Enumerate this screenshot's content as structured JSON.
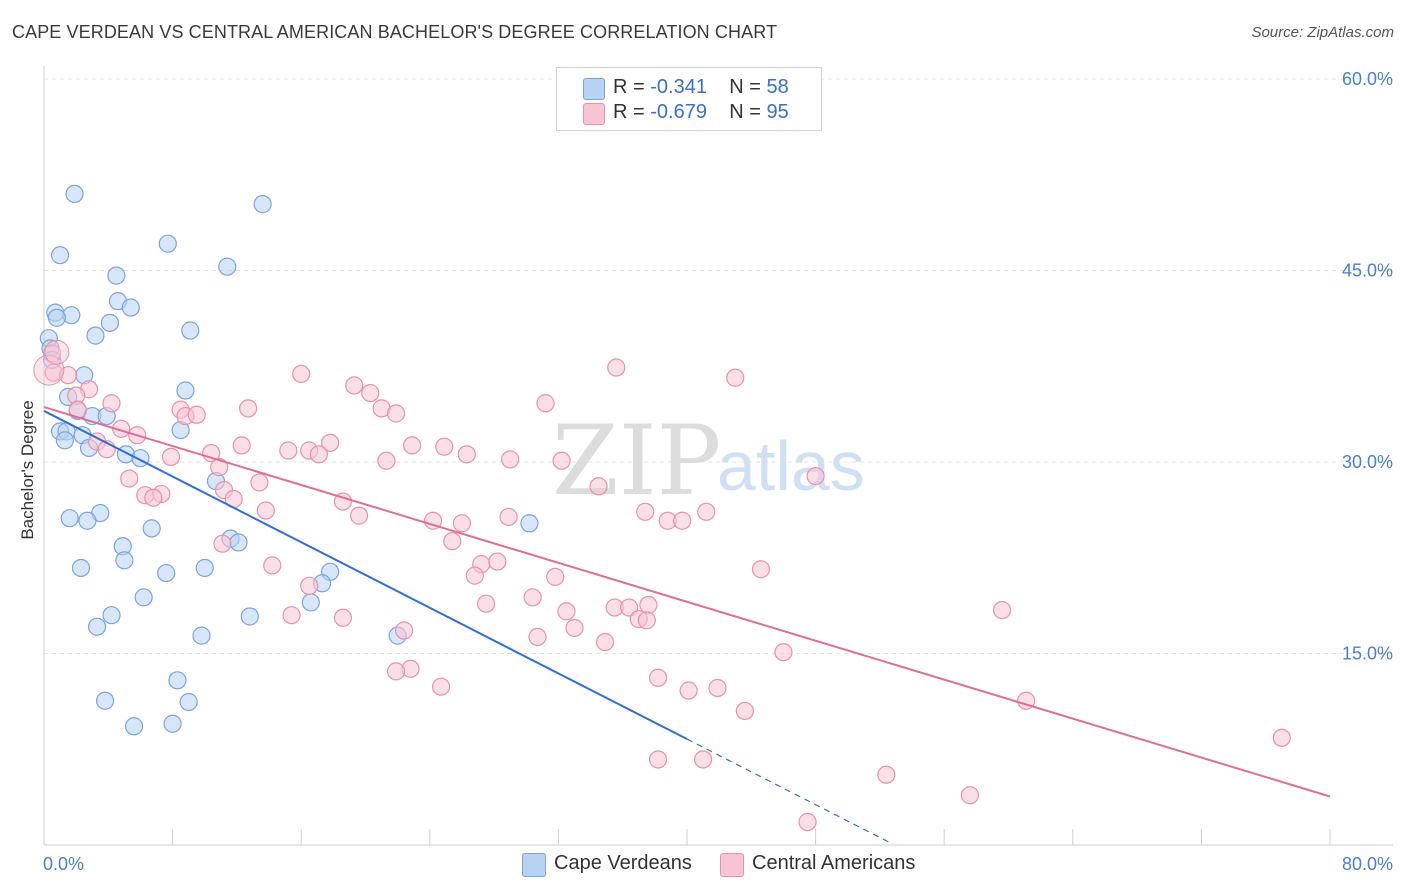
{
  "header": {
    "title": "CAPE VERDEAN VS CENTRAL AMERICAN BACHELOR'S DEGREE CORRELATION CHART",
    "source": "Source: ZipAtlas.com"
  },
  "watermark": {
    "zip": "ZIP",
    "atlas": "atlas"
  },
  "legend_top": {
    "rows": [
      {
        "r_label": "R = ",
        "r_value": "-0.341",
        "n_label": "N = ",
        "n_value": "58"
      },
      {
        "r_label": "R = ",
        "r_value": "-0.679",
        "n_label": "N = ",
        "n_value": "95"
      }
    ]
  },
  "legend_bottom": {
    "items": [
      "Cape Verdeans",
      "Central Americans"
    ]
  },
  "colors": {
    "blue_fill": "#b8d2f4",
    "blue_stroke": "#7aa4e0",
    "blue_line": "#2f6fd6",
    "pink_fill": "#f8c4d3",
    "pink_stroke": "#e891ad",
    "pink_line": "#e06d96",
    "grid": "#e3e3e3",
    "tick_text": "#4a7fd1"
  },
  "chart_data": {
    "type": "scatter",
    "title": "CAPE VERDEAN VS CENTRAL AMERICAN BACHELOR'S DEGREE CORRELATION CHART",
    "xlabel": "",
    "ylabel": "Bachelor's Degree",
    "xlim": [
      0,
      80
    ],
    "ylim": [
      0,
      60
    ],
    "x_tick_labels": [
      {
        "value": 0,
        "label": "0.0%"
      },
      {
        "value": 80,
        "label": "80.0%"
      }
    ],
    "y_tick_labels": [
      {
        "value": 15,
        "label": "15.0%"
      },
      {
        "value": 30,
        "label": "30.0%"
      },
      {
        "value": 45,
        "label": "45.0%"
      },
      {
        "value": 60,
        "label": "60.0%"
      }
    ],
    "series": [
      {
        "name": "Cape Verdeans",
        "R": -0.341,
        "N": 58,
        "trend": {
          "x0": 0,
          "y0": 34.0,
          "x1": 40,
          "y1": 8.3,
          "dash_to_x": 52.6
        },
        "points": [
          [
            1.9,
            51.0
          ],
          [
            13.6,
            50.2
          ],
          [
            7.7,
            47.1
          ],
          [
            1.0,
            46.2
          ],
          [
            11.4,
            45.3
          ],
          [
            4.5,
            44.6
          ],
          [
            4.6,
            42.6
          ],
          [
            5.4,
            42.1
          ],
          [
            0.7,
            41.7
          ],
          [
            1.7,
            41.5
          ],
          [
            0.8,
            41.3
          ],
          [
            4.1,
            40.9
          ],
          [
            9.1,
            40.3
          ],
          [
            3.2,
            39.9
          ],
          [
            0.3,
            39.7
          ],
          [
            0.4,
            38.9
          ],
          [
            0.5,
            38.0
          ],
          [
            2.5,
            36.8
          ],
          [
            8.8,
            35.6
          ],
          [
            1.5,
            35.1
          ],
          [
            2.1,
            34.0
          ],
          [
            3.0,
            33.6
          ],
          [
            3.9,
            33.6
          ],
          [
            1.0,
            32.4
          ],
          [
            1.4,
            32.4
          ],
          [
            2.4,
            32.1
          ],
          [
            8.5,
            32.5
          ],
          [
            1.3,
            31.7
          ],
          [
            2.8,
            31.1
          ],
          [
            5.1,
            30.6
          ],
          [
            6.0,
            30.3
          ],
          [
            10.7,
            28.5
          ],
          [
            1.6,
            25.6
          ],
          [
            3.5,
            26.0
          ],
          [
            2.7,
            25.4
          ],
          [
            30.2,
            25.2
          ],
          [
            6.7,
            24.8
          ],
          [
            11.6,
            24.0
          ],
          [
            12.1,
            23.7
          ],
          [
            4.9,
            23.4
          ],
          [
            5.0,
            22.3
          ],
          [
            2.3,
            21.7
          ],
          [
            10.0,
            21.7
          ],
          [
            7.6,
            21.3
          ],
          [
            17.8,
            21.4
          ],
          [
            17.3,
            20.5
          ],
          [
            6.2,
            19.4
          ],
          [
            16.6,
            19.0
          ],
          [
            4.2,
            18.0
          ],
          [
            12.8,
            17.9
          ],
          [
            3.3,
            17.1
          ],
          [
            9.8,
            16.4
          ],
          [
            22.0,
            16.4
          ],
          [
            8.3,
            12.9
          ],
          [
            3.8,
            11.3
          ],
          [
            9.0,
            11.2
          ],
          [
            5.6,
            9.3
          ],
          [
            8.0,
            9.5
          ]
        ]
      },
      {
        "name": "Central Americans",
        "R": -0.679,
        "N": 95,
        "trend": {
          "x0": 0,
          "y0": 34.3,
          "x1": 80,
          "y1": 3.8
        },
        "points": [
          [
            0.5,
            38.5
          ],
          [
            0.6,
            37.0
          ],
          [
            1.5,
            36.8
          ],
          [
            2.8,
            35.7
          ],
          [
            2.0,
            35.2
          ],
          [
            2.1,
            34.1
          ],
          [
            4.2,
            34.6
          ],
          [
            16.0,
            36.9
          ],
          [
            19.3,
            36.0
          ],
          [
            20.3,
            35.4
          ],
          [
            35.6,
            37.4
          ],
          [
            43.0,
            36.6
          ],
          [
            31.2,
            34.6
          ],
          [
            12.7,
            34.2
          ],
          [
            8.5,
            34.1
          ],
          [
            8.8,
            33.6
          ],
          [
            9.5,
            33.7
          ],
          [
            21.0,
            34.2
          ],
          [
            21.9,
            33.8
          ],
          [
            4.8,
            32.6
          ],
          [
            5.8,
            32.1
          ],
          [
            3.3,
            31.6
          ],
          [
            3.9,
            31.0
          ],
          [
            12.3,
            31.3
          ],
          [
            17.8,
            31.5
          ],
          [
            22.9,
            31.3
          ],
          [
            24.9,
            31.2
          ],
          [
            15.2,
            30.9
          ],
          [
            16.5,
            30.9
          ],
          [
            17.1,
            30.6
          ],
          [
            10.4,
            30.7
          ],
          [
            7.9,
            30.4
          ],
          [
            26.3,
            30.6
          ],
          [
            29.0,
            30.2
          ],
          [
            21.3,
            30.1
          ],
          [
            32.2,
            30.1
          ],
          [
            10.9,
            29.6
          ],
          [
            13.4,
            28.4
          ],
          [
            5.3,
            28.7
          ],
          [
            48.0,
            28.9
          ],
          [
            11.2,
            27.8
          ],
          [
            6.3,
            27.4
          ],
          [
            7.3,
            27.5
          ],
          [
            6.8,
            27.2
          ],
          [
            11.8,
            27.1
          ],
          [
            18.6,
            26.9
          ],
          [
            34.5,
            28.1
          ],
          [
            13.8,
            26.2
          ],
          [
            19.6,
            25.8
          ],
          [
            37.4,
            26.1
          ],
          [
            41.2,
            26.1
          ],
          [
            28.9,
            25.7
          ],
          [
            24.2,
            25.4
          ],
          [
            26.0,
            25.2
          ],
          [
            38.8,
            25.4
          ],
          [
            39.7,
            25.4
          ],
          [
            25.4,
            23.8
          ],
          [
            11.1,
            23.6
          ],
          [
            27.2,
            22.0
          ],
          [
            28.2,
            22.2
          ],
          [
            14.2,
            21.9
          ],
          [
            44.6,
            21.6
          ],
          [
            26.8,
            21.1
          ],
          [
            31.8,
            21.0
          ],
          [
            16.5,
            20.3
          ],
          [
            30.4,
            19.4
          ],
          [
            27.5,
            18.9
          ],
          [
            35.5,
            18.6
          ],
          [
            36.4,
            18.6
          ],
          [
            37.6,
            18.8
          ],
          [
            59.6,
            18.4
          ],
          [
            32.5,
            18.3
          ],
          [
            15.4,
            18.0
          ],
          [
            18.6,
            17.8
          ],
          [
            37.0,
            17.7
          ],
          [
            37.5,
            17.6
          ],
          [
            22.4,
            16.8
          ],
          [
            33.0,
            17.0
          ],
          [
            30.7,
            16.3
          ],
          [
            34.9,
            15.9
          ],
          [
            46.0,
            15.1
          ],
          [
            22.8,
            13.8
          ],
          [
            21.9,
            13.6
          ],
          [
            24.7,
            12.4
          ],
          [
            38.2,
            13.1
          ],
          [
            40.1,
            12.1
          ],
          [
            41.9,
            12.3
          ],
          [
            43.6,
            10.5
          ],
          [
            61.1,
            11.3
          ],
          [
            77.0,
            8.4
          ],
          [
            38.2,
            6.7
          ],
          [
            41.0,
            6.7
          ],
          [
            52.4,
            5.5
          ],
          [
            57.6,
            3.9
          ],
          [
            47.5,
            1.8
          ]
        ]
      }
    ]
  }
}
